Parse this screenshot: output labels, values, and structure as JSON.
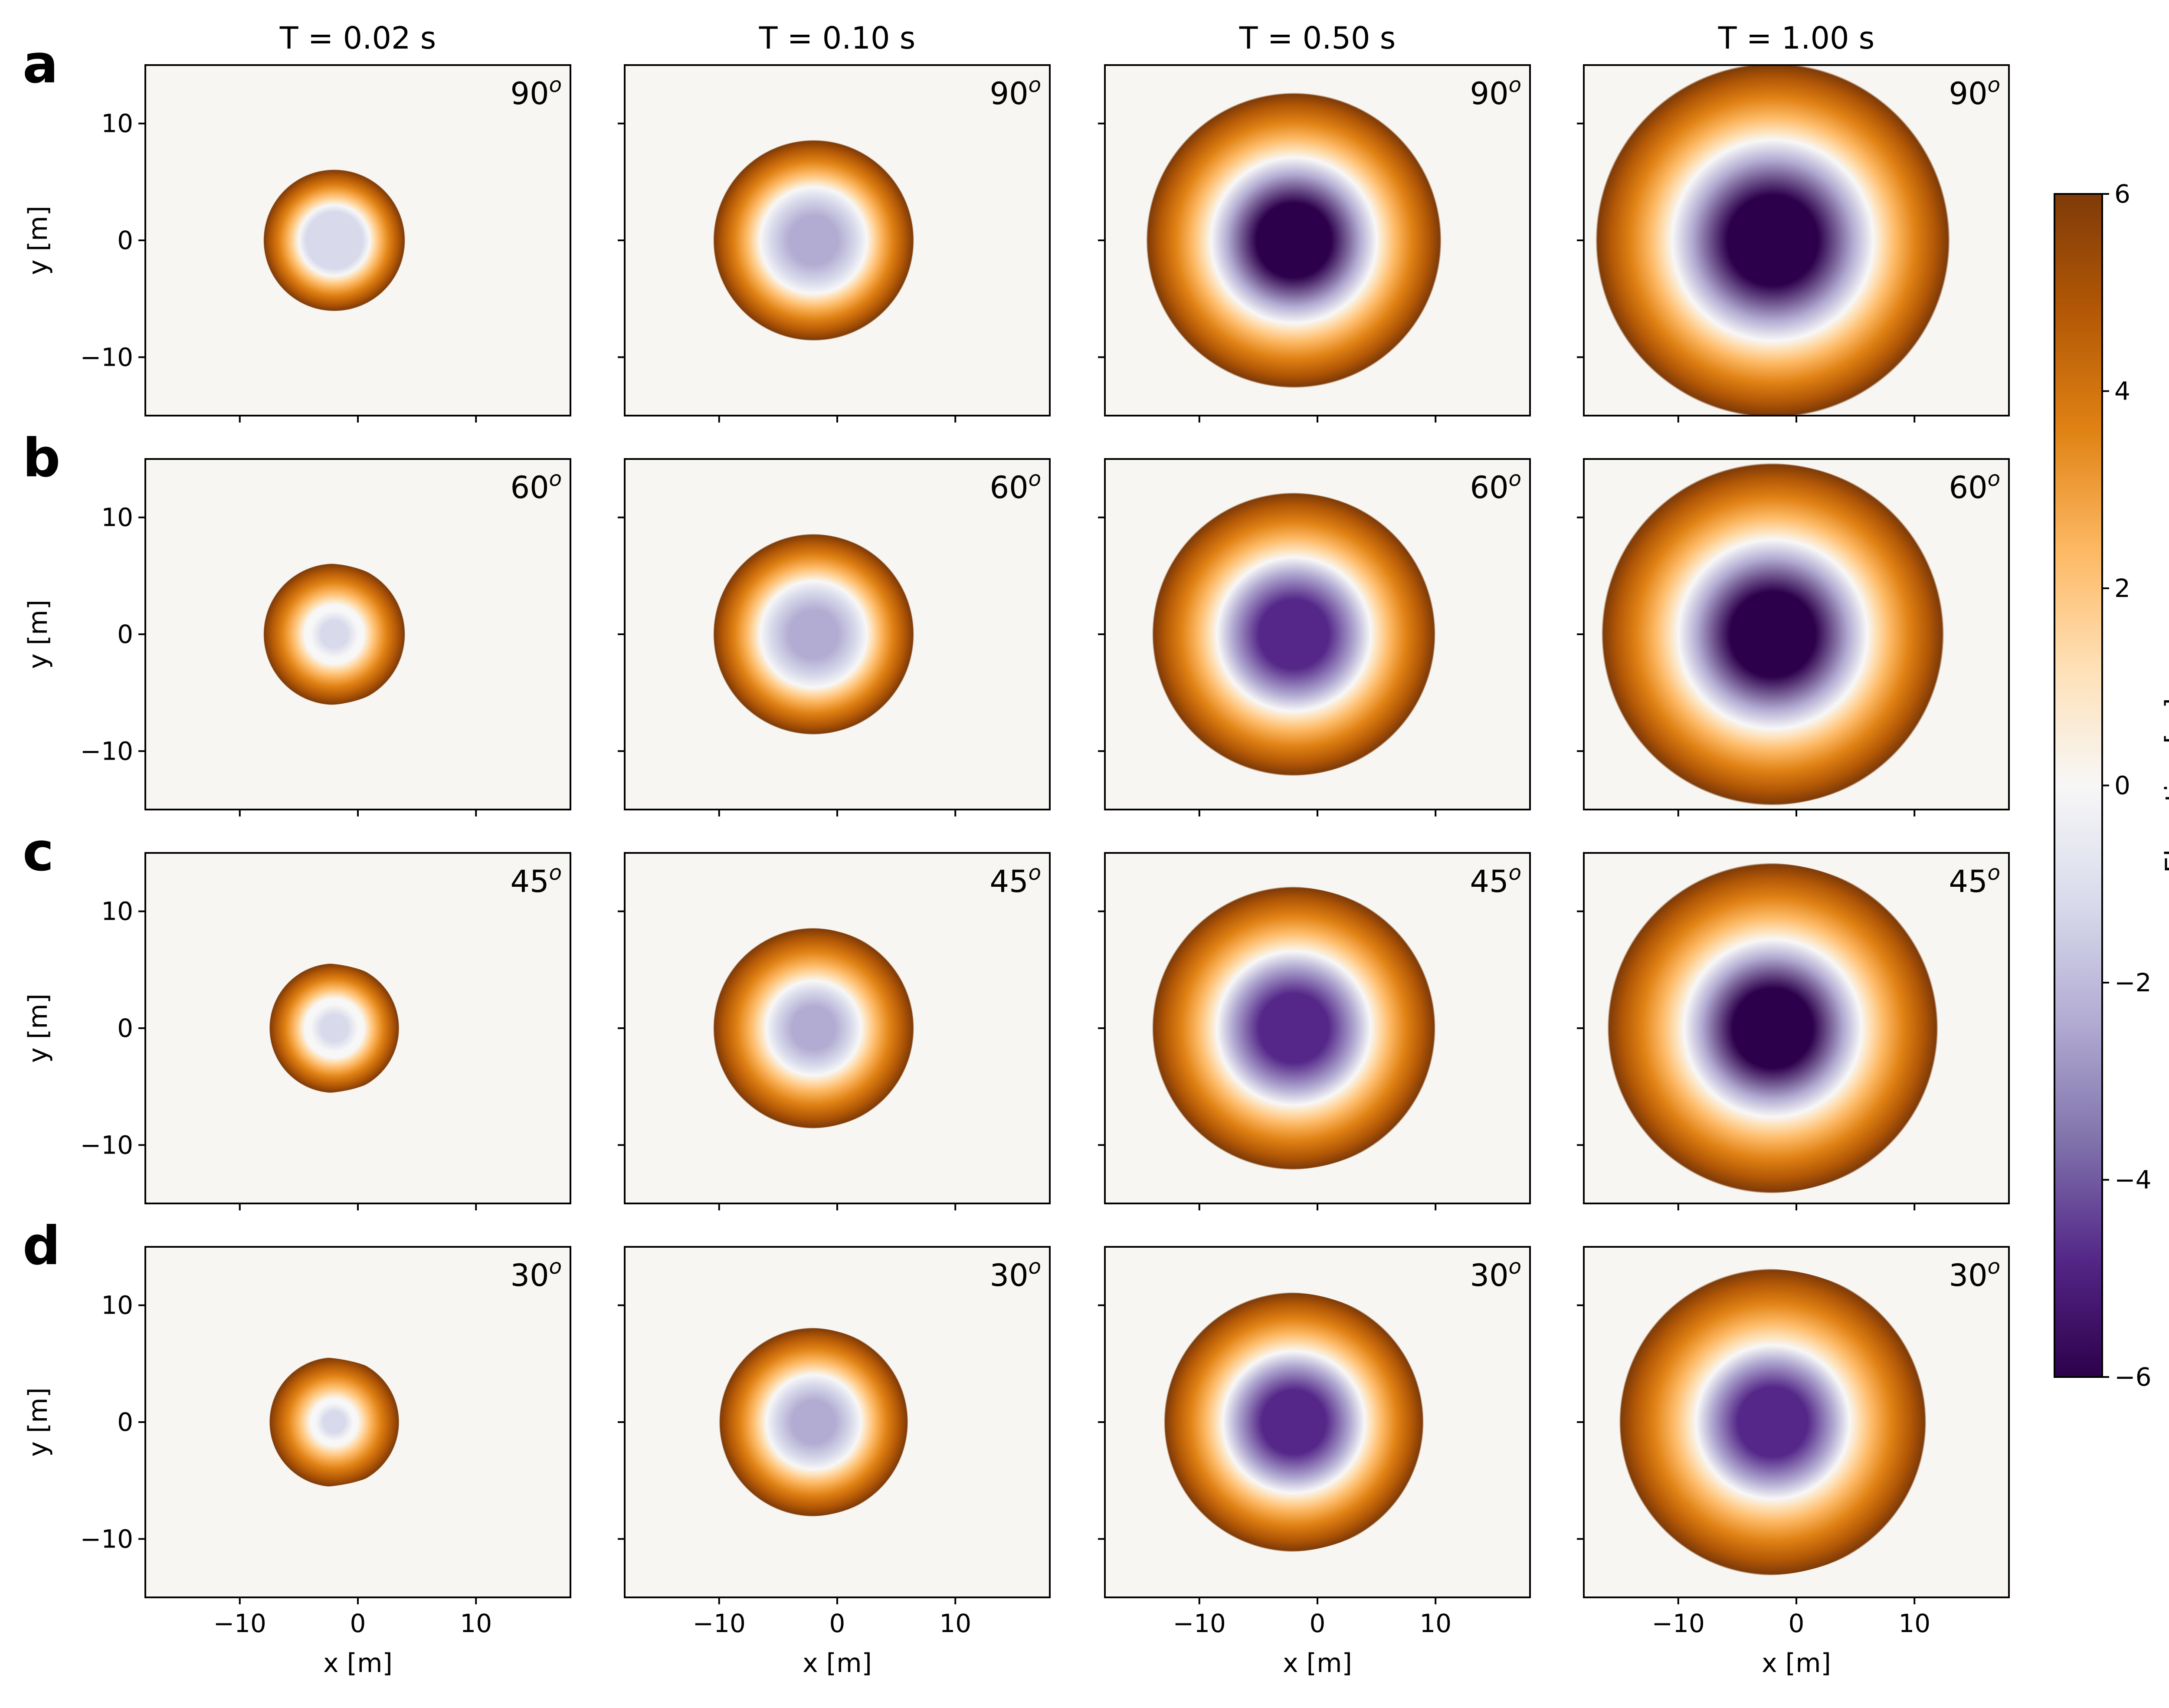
{
  "chart_data": {
    "type": "heatmap",
    "layout": "4 rows x 4 columns of panels with shared colorbar on the right",
    "columns": [
      {
        "title": "T = 0.02 s",
        "t": 0.02
      },
      {
        "title": "T = 0.10 s",
        "t": 0.1
      },
      {
        "title": "T = 0.50 s",
        "t": 0.5
      },
      {
        "title": "T = 1.00 s",
        "t": 1.0
      }
    ],
    "rows": [
      {
        "letter": "a",
        "angle_label": "90",
        "angle": 90
      },
      {
        "letter": "b",
        "angle_label": "60",
        "angle": 60
      },
      {
        "letter": "c",
        "angle_label": "45",
        "angle": 45
      },
      {
        "letter": "d",
        "angle_label": "30",
        "angle": 30
      }
    ],
    "angle_superscript": "o",
    "xlabel": "x [m]",
    "ylabel": "y [m]",
    "xlim": [
      -18,
      18
    ],
    "ylim": [
      -15,
      15
    ],
    "xticks": [
      -10,
      0,
      10
    ],
    "yticks": [
      -10,
      0,
      10
    ],
    "xtick_labels": [
      "−10",
      "0",
      "10"
    ],
    "ytick_labels": [
      "−10",
      "0",
      "10"
    ],
    "crater_center_x": -2,
    "panels": [
      [
        {
          "crater_radius": 3.0,
          "rim_radius": 6.0,
          "min_elev": -1.5
        },
        {
          "crater_radius": 4.5,
          "rim_radius": 8.5,
          "min_elev": -2.8
        },
        {
          "crater_radius": 7.0,
          "rim_radius": 12.5,
          "min_elev": -5.6
        },
        {
          "crater_radius": 8.5,
          "rim_radius": 15.0,
          "min_elev": -6.0
        }
      ],
      [
        {
          "crater_radius": 2.5,
          "rim_radius": 6.0,
          "min_elev": -1.2
        },
        {
          "crater_radius": 4.5,
          "rim_radius": 8.5,
          "min_elev": -2.5
        },
        {
          "crater_radius": 6.5,
          "rim_radius": 12.0,
          "min_elev": -5.0
        },
        {
          "crater_radius": 8.0,
          "rim_radius": 14.5,
          "min_elev": -6.0
        }
      ],
      [
        {
          "crater_radius": 2.5,
          "rim_radius": 5.5,
          "min_elev": -1.0
        },
        {
          "crater_radius": 4.0,
          "rim_radius": 8.5,
          "min_elev": -2.8
        },
        {
          "crater_radius": 6.5,
          "rim_radius": 12.0,
          "min_elev": -5.2
        },
        {
          "crater_radius": 7.5,
          "rim_radius": 14.0,
          "min_elev": -6.0
        }
      ],
      [
        {
          "crater_radius": 2.0,
          "rim_radius": 5.5,
          "min_elev": -1.0
        },
        {
          "crater_radius": 4.0,
          "rim_radius": 8.0,
          "min_elev": -2.5
        },
        {
          "crater_radius": 6.0,
          "rim_radius": 11.0,
          "min_elev": -4.5
        },
        {
          "crater_radius": 6.5,
          "rim_radius": 13.0,
          "min_elev": -5.2
        }
      ]
    ],
    "colorbar": {
      "label": "Elevation [m]",
      "range": [
        -6,
        6
      ],
      "ticks": [
        -6,
        -4,
        -2,
        0,
        2,
        4,
        6
      ],
      "tick_labels": [
        "−6",
        "−4",
        "−2",
        "0",
        "2",
        "4",
        "6"
      ],
      "colormap": "PuOr_r",
      "colors": [
        "#2d004b",
        "#542788",
        "#8073ac",
        "#b2abd2",
        "#d8daeb",
        "#f7f7f7",
        "#fee0b6",
        "#fdb863",
        "#e08214",
        "#b35806",
        "#7f3b08"
      ]
    },
    "background_color": "#f7f6f2"
  }
}
